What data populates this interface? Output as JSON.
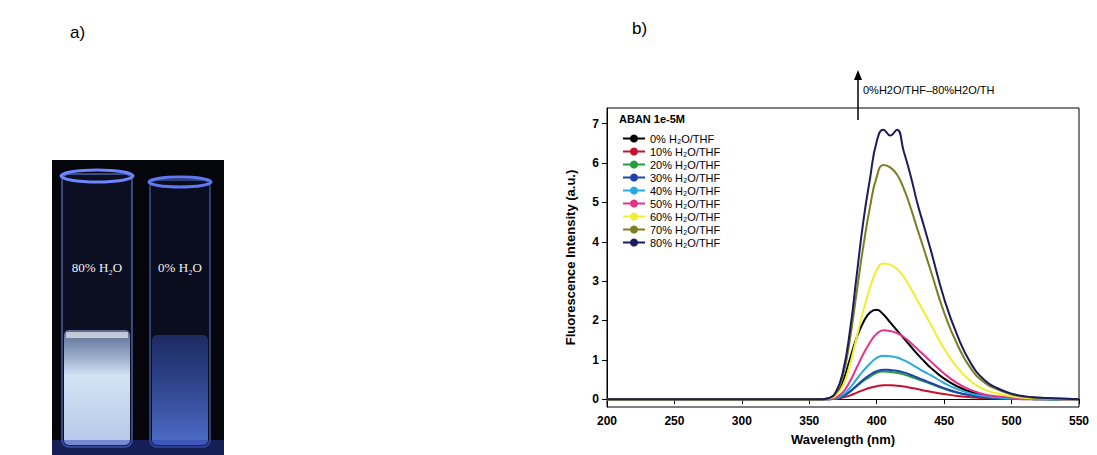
{
  "panel_labels": [
    "a)",
    "b)"
  ],
  "photo": {
    "vials": [
      {
        "label": "80% H₂O"
      },
      {
        "label": "0% H₂O"
      }
    ]
  },
  "chart_data": {
    "type": "line",
    "legend_title": "ABAN 1e-5M",
    "annotation": "0%H2O/THF–80%H2O/TH",
    "x_label": "Wavelength (nm)",
    "y_label": "Fluorescence Intensity (a.u.)",
    "x": [
      200,
      250,
      300,
      350,
      360,
      365,
      370,
      375,
      380,
      385,
      390,
      395,
      400,
      405,
      410,
      415,
      420,
      425,
      430,
      435,
      440,
      450,
      460,
      470,
      480,
      490,
      500,
      510,
      520,
      530,
      540,
      550
    ],
    "series": [
      {
        "name": "0% H₂O/THF",
        "color": "#000000",
        "values": [
          0,
          0,
          0,
          0,
          0,
          0.02,
          0.12,
          0.45,
          1.0,
          1.55,
          1.95,
          2.2,
          2.27,
          2.15,
          1.95,
          1.75,
          1.55,
          1.35,
          1.15,
          0.97,
          0.8,
          0.52,
          0.32,
          0.18,
          0.1,
          0.05,
          0.03,
          0.01,
          0.01,
          0,
          0,
          0
        ]
      },
      {
        "name": "10% H₂O/THF",
        "color": "#c8102e",
        "values": [
          0,
          0,
          0,
          0,
          0,
          0,
          0.01,
          0.04,
          0.09,
          0.16,
          0.23,
          0.29,
          0.33,
          0.35,
          0.35,
          0.34,
          0.32,
          0.29,
          0.26,
          0.22,
          0.19,
          0.13,
          0.08,
          0.05,
          0.02,
          0.01,
          0.01,
          0,
          0,
          0,
          0,
          0
        ]
      },
      {
        "name": "20% H₂O/THF",
        "color": "#1e9e3c",
        "values": [
          0,
          0,
          0,
          0,
          0,
          0,
          0.02,
          0.07,
          0.18,
          0.32,
          0.46,
          0.57,
          0.67,
          0.7,
          0.69,
          0.67,
          0.63,
          0.57,
          0.51,
          0.45,
          0.39,
          0.26,
          0.16,
          0.09,
          0.05,
          0.03,
          0.01,
          0.01,
          0,
          0,
          0,
          0
        ]
      },
      {
        "name": "30% H₂O/THF",
        "color": "#2040b0",
        "values": [
          0,
          0,
          0,
          0,
          0,
          0,
          0.02,
          0.08,
          0.19,
          0.34,
          0.49,
          0.62,
          0.71,
          0.75,
          0.74,
          0.72,
          0.68,
          0.62,
          0.55,
          0.48,
          0.41,
          0.28,
          0.17,
          0.1,
          0.05,
          0.03,
          0.02,
          0.01,
          0,
          0,
          0,
          0
        ]
      },
      {
        "name": "40% H₂O/THF",
        "color": "#29aae2",
        "values": [
          0,
          0,
          0,
          0,
          0,
          0.01,
          0.03,
          0.11,
          0.28,
          0.5,
          0.72,
          0.9,
          1.05,
          1.1,
          1.09,
          1.06,
          0.99,
          0.9,
          0.8,
          0.7,
          0.61,
          0.41,
          0.25,
          0.14,
          0.08,
          0.04,
          0.02,
          0.01,
          0.01,
          0,
          0,
          0
        ]
      },
      {
        "name": "50% H₂O/THF",
        "color": "#e4338a",
        "values": [
          0,
          0,
          0,
          0,
          0,
          0.01,
          0.05,
          0.18,
          0.44,
          0.79,
          1.14,
          1.44,
          1.66,
          1.75,
          1.73,
          1.68,
          1.58,
          1.44,
          1.28,
          1.12,
          0.96,
          0.65,
          0.4,
          0.23,
          0.12,
          0.07,
          0.04,
          0.02,
          0.01,
          0.01,
          0,
          0
        ]
      },
      {
        "name": "60% H₂O/THF",
        "color": "#f2ee2c",
        "values": [
          0,
          0,
          0,
          0,
          0,
          0.02,
          0.1,
          0.35,
          0.86,
          1.55,
          2.24,
          2.83,
          3.28,
          3.45,
          3.42,
          3.31,
          3.11,
          2.83,
          2.52,
          2.21,
          1.9,
          1.28,
          0.79,
          0.45,
          0.24,
          0.14,
          0.07,
          0.03,
          0.02,
          0.01,
          0,
          0
        ]
      },
      {
        "name": "70% H₂O/THF",
        "color": "#7d7d22",
        "values": [
          0,
          0,
          0,
          0,
          0,
          0.03,
          0.18,
          0.6,
          1.49,
          2.68,
          3.87,
          4.88,
          5.65,
          5.95,
          5.89,
          5.71,
          5.36,
          4.88,
          4.34,
          3.81,
          3.27,
          2.2,
          1.37,
          0.77,
          0.42,
          0.24,
          0.12,
          0.06,
          0.03,
          0.02,
          0.01,
          0
        ]
      },
      {
        "name": "80% H₂O/THF",
        "color": "#1b1b5e",
        "values": [
          0,
          0,
          0,
          0,
          0,
          0.03,
          0.2,
          0.7,
          1.7,
          3.1,
          4.5,
          5.6,
          6.55,
          6.85,
          6.7,
          6.85,
          6.3,
          5.7,
          5.0,
          4.4,
          3.8,
          2.55,
          1.6,
          0.9,
          0.48,
          0.27,
          0.14,
          0.07,
          0.04,
          0.02,
          0.01,
          0
        ]
      }
    ],
    "xlim": [
      200,
      550
    ],
    "xticks": [
      200,
      250,
      300,
      350,
      400,
      450,
      500,
      550
    ],
    "ylim": [
      -0.2,
      7.4
    ],
    "yticks": [
      0,
      1,
      2,
      3,
      4,
      5,
      6,
      7
    ],
    "grid": false,
    "legend": "upper left"
  }
}
